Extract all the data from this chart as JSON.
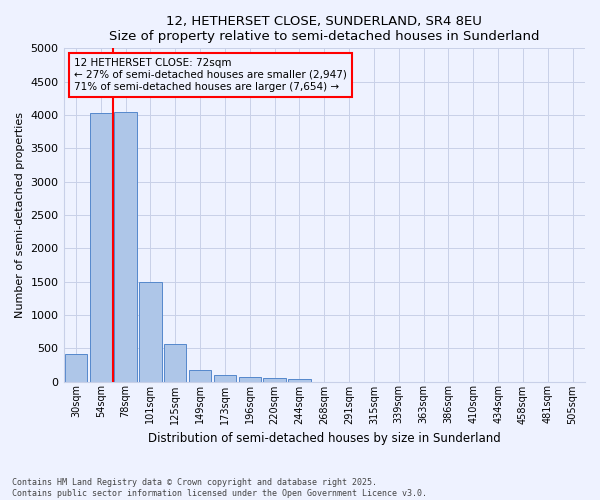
{
  "title": "12, HETHERSET CLOSE, SUNDERLAND, SR4 8EU",
  "subtitle": "Size of property relative to semi-detached houses in Sunderland",
  "xlabel": "Distribution of semi-detached houses by size in Sunderland",
  "ylabel": "Number of semi-detached properties",
  "bin_labels": [
    "30sqm",
    "54sqm",
    "78sqm",
    "101sqm",
    "125sqm",
    "149sqm",
    "173sqm",
    "196sqm",
    "220sqm",
    "244sqm",
    "268sqm",
    "291sqm",
    "315sqm",
    "339sqm",
    "363sqm",
    "386sqm",
    "410sqm",
    "434sqm",
    "458sqm",
    "481sqm",
    "505sqm"
  ],
  "bin_values": [
    420,
    4030,
    4050,
    1490,
    560,
    180,
    100,
    70,
    55,
    40,
    0,
    0,
    0,
    0,
    0,
    0,
    0,
    0,
    0,
    0,
    0
  ],
  "bar_color": "#aec6e8",
  "bar_edge_color": "#5588cc",
  "property_sqm": 72,
  "pct_smaller": 27,
  "n_smaller": 2947,
  "pct_larger": 71,
  "n_larger": 7654,
  "annotation_label": "12 HETHERSET CLOSE: 72sqm",
  "annotation_arrow_smaller": "← 27% of semi-detached houses are smaller (2,947)",
  "annotation_arrow_larger": "71% of semi-detached houses are larger (7,654) →",
  "ylim": [
    0,
    5000
  ],
  "yticks": [
    0,
    500,
    1000,
    1500,
    2000,
    2500,
    3000,
    3500,
    4000,
    4500,
    5000
  ],
  "footnote1": "Contains HM Land Registry data © Crown copyright and database right 2025.",
  "footnote2": "Contains public sector information licensed under the Open Government Licence v3.0.",
  "bg_color": "#eef2ff",
  "grid_color": "#c8d0e8",
  "red_line_x": 1.5
}
